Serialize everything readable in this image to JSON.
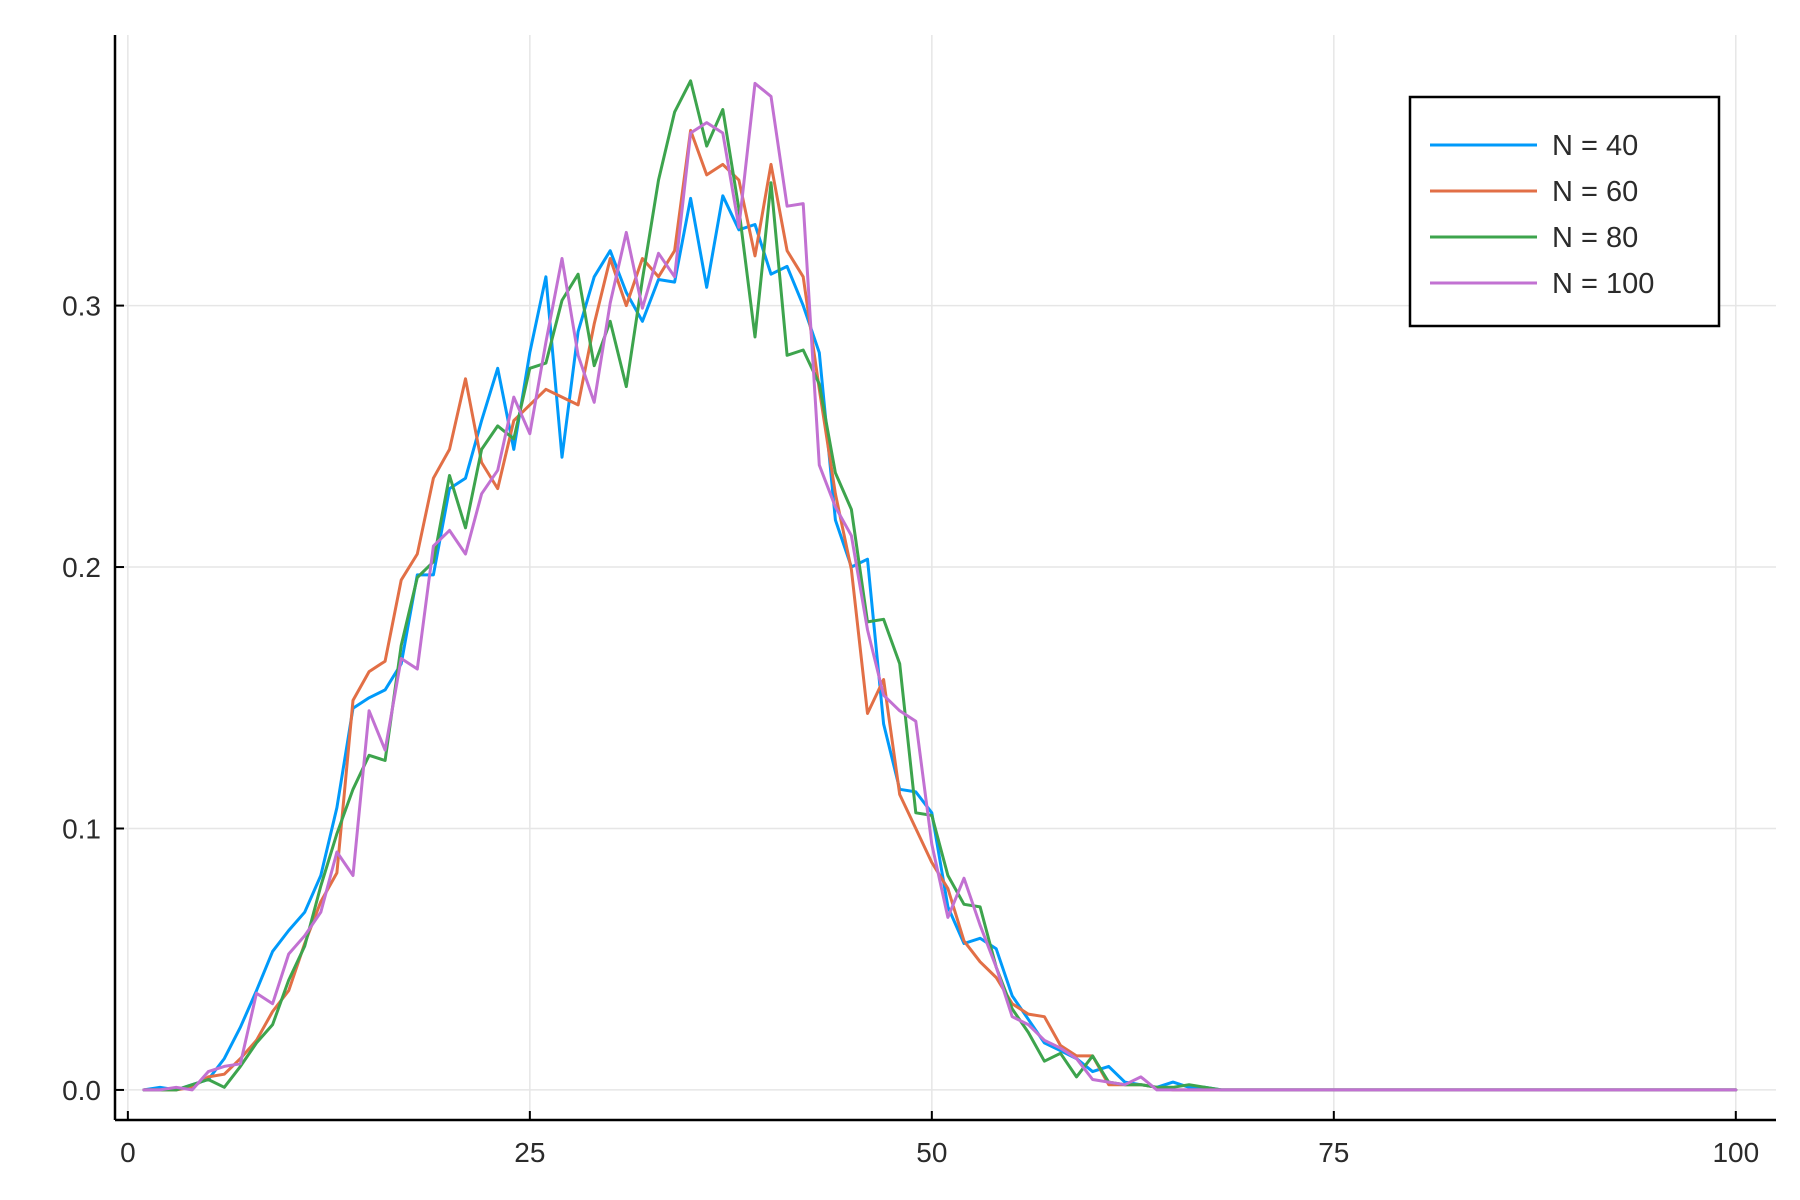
{
  "chart_data": {
    "type": "line",
    "title": "",
    "xlabel": "",
    "ylabel": "",
    "xlim": [
      -0.8,
      102.5
    ],
    "ylim": [
      -0.0115,
      0.4035
    ],
    "x_ticks": [
      0,
      25,
      50,
      75,
      100
    ],
    "x_tick_labels": [
      "0",
      "25",
      "50",
      "75",
      "100"
    ],
    "y_ticks": [
      0.0,
      0.1,
      0.2,
      0.3
    ],
    "y_tick_labels": [
      "0.0",
      "0.1",
      "0.2",
      "0.3"
    ],
    "grid": true,
    "legend_position": "top-right",
    "series": [
      {
        "name": "N = 40",
        "color": "#009AFA",
        "x": [
          1,
          2,
          3,
          4,
          5,
          6,
          7,
          8,
          9,
          10,
          11,
          12,
          13,
          14,
          15,
          16,
          17,
          18,
          19,
          20,
          21,
          22,
          23,
          24,
          25,
          26,
          27,
          28,
          29,
          30,
          31,
          32,
          33,
          34,
          35,
          36,
          37,
          38,
          39,
          40,
          41,
          42,
          43,
          44,
          45,
          46,
          47,
          48,
          49,
          50,
          51,
          52,
          53,
          54,
          55,
          56,
          57,
          58,
          59,
          60,
          61,
          62,
          63,
          64,
          65,
          66,
          67,
          68,
          69,
          70,
          75,
          80,
          85,
          90,
          95,
          100
        ],
        "y": [
          0.0,
          0.001,
          0.0,
          0.002,
          0.004,
          0.012,
          0.024,
          0.038,
          0.053,
          0.061,
          0.068,
          0.082,
          0.108,
          0.146,
          0.15,
          0.153,
          0.163,
          0.197,
          0.197,
          0.23,
          0.234,
          0.256,
          0.276,
          0.245,
          0.282,
          0.311,
          0.242,
          0.29,
          0.311,
          0.321,
          0.305,
          0.294,
          0.31,
          0.309,
          0.341,
          0.307,
          0.342,
          0.329,
          0.331,
          0.312,
          0.315,
          0.3,
          0.282,
          0.218,
          0.2,
          0.203,
          0.14,
          0.115,
          0.114,
          0.106,
          0.07,
          0.056,
          0.058,
          0.054,
          0.036,
          0.027,
          0.018,
          0.015,
          0.012,
          0.007,
          0.009,
          0.003,
          0.002,
          0.001,
          0.003,
          0.001,
          0.001,
          0.0,
          0.0,
          0.0,
          0.0,
          0.0,
          0.0,
          0.0,
          0.0,
          0.0
        ]
      },
      {
        "name": "N = 60",
        "color": "#E26F46",
        "x": [
          1,
          2,
          3,
          4,
          5,
          6,
          7,
          8,
          9,
          10,
          11,
          12,
          13,
          14,
          15,
          16,
          17,
          18,
          19,
          20,
          21,
          22,
          23,
          24,
          25,
          26,
          27,
          28,
          29,
          30,
          31,
          32,
          33,
          34,
          35,
          36,
          37,
          38,
          39,
          40,
          41,
          42,
          43,
          44,
          45,
          46,
          47,
          48,
          49,
          50,
          51,
          52,
          53,
          54,
          55,
          56,
          57,
          58,
          59,
          60,
          61,
          62,
          63,
          64,
          65,
          66,
          67,
          68,
          69,
          70,
          75,
          80,
          85,
          90,
          95,
          100
        ],
        "y": [
          0.0,
          0.0,
          0.0,
          0.001,
          0.005,
          0.006,
          0.012,
          0.019,
          0.03,
          0.038,
          0.056,
          0.072,
          0.083,
          0.149,
          0.16,
          0.164,
          0.195,
          0.205,
          0.234,
          0.245,
          0.272,
          0.24,
          0.23,
          0.256,
          0.262,
          0.268,
          0.265,
          0.262,
          0.293,
          0.318,
          0.3,
          0.318,
          0.311,
          0.321,
          0.367,
          0.35,
          0.354,
          0.348,
          0.319,
          0.354,
          0.321,
          0.311,
          0.268,
          0.228,
          0.199,
          0.144,
          0.157,
          0.113,
          0.1,
          0.087,
          0.077,
          0.057,
          0.049,
          0.043,
          0.033,
          0.029,
          0.028,
          0.017,
          0.013,
          0.013,
          0.002,
          0.002,
          0.002,
          0.001,
          0.0,
          0.0,
          0.0,
          0.0,
          0.0,
          0.0,
          0.0,
          0.0,
          0.0,
          0.0,
          0.0,
          0.0
        ]
      },
      {
        "name": "N = 80",
        "color": "#3DA44D",
        "x": [
          1,
          2,
          3,
          4,
          5,
          6,
          7,
          8,
          9,
          10,
          11,
          12,
          13,
          14,
          15,
          16,
          17,
          18,
          19,
          20,
          21,
          22,
          23,
          24,
          25,
          26,
          27,
          28,
          29,
          30,
          31,
          32,
          33,
          34,
          35,
          36,
          37,
          38,
          39,
          40,
          41,
          42,
          43,
          44,
          45,
          46,
          47,
          48,
          49,
          50,
          51,
          52,
          53,
          54,
          55,
          56,
          57,
          58,
          59,
          60,
          61,
          62,
          63,
          64,
          65,
          66,
          67,
          68,
          69,
          70,
          75,
          80,
          85,
          90,
          95,
          100
        ],
        "y": [
          0.0,
          0.0,
          0.0,
          0.002,
          0.004,
          0.001,
          0.009,
          0.018,
          0.025,
          0.042,
          0.055,
          0.078,
          0.098,
          0.115,
          0.128,
          0.126,
          0.17,
          0.196,
          0.202,
          0.235,
          0.215,
          0.245,
          0.254,
          0.249,
          0.276,
          0.278,
          0.302,
          0.312,
          0.277,
          0.294,
          0.269,
          0.31,
          0.348,
          0.374,
          0.386,
          0.361,
          0.375,
          0.337,
          0.288,
          0.347,
          0.281,
          0.283,
          0.27,
          0.236,
          0.222,
          0.179,
          0.18,
          0.163,
          0.106,
          0.105,
          0.082,
          0.071,
          0.07,
          0.047,
          0.031,
          0.022,
          0.011,
          0.014,
          0.005,
          0.013,
          0.003,
          0.002,
          0.002,
          0.001,
          0.001,
          0.002,
          0.001,
          0.0,
          0.0,
          0.0,
          0.0,
          0.0,
          0.0,
          0.0,
          0.0,
          0.0
        ]
      },
      {
        "name": "N = 100",
        "color": "#C271D2",
        "x": [
          1,
          2,
          3,
          4,
          5,
          6,
          7,
          8,
          9,
          10,
          11,
          12,
          13,
          14,
          15,
          16,
          17,
          18,
          19,
          20,
          21,
          22,
          23,
          24,
          25,
          26,
          27,
          28,
          29,
          30,
          31,
          32,
          33,
          34,
          35,
          36,
          37,
          38,
          39,
          40,
          41,
          42,
          43,
          44,
          45,
          46,
          47,
          48,
          49,
          50,
          51,
          52,
          53,
          54,
          55,
          56,
          57,
          58,
          59,
          60,
          61,
          62,
          63,
          64,
          65,
          66,
          67,
          68,
          69,
          70,
          75,
          80,
          85,
          90,
          95,
          100
        ],
        "y": [
          0.0,
          0.0,
          0.001,
          0.0,
          0.007,
          0.009,
          0.01,
          0.037,
          0.033,
          0.052,
          0.059,
          0.068,
          0.091,
          0.082,
          0.145,
          0.13,
          0.165,
          0.161,
          0.208,
          0.214,
          0.205,
          0.228,
          0.237,
          0.265,
          0.251,
          0.286,
          0.318,
          0.281,
          0.263,
          0.301,
          0.328,
          0.299,
          0.32,
          0.311,
          0.366,
          0.37,
          0.366,
          0.33,
          0.385,
          0.38,
          0.338,
          0.339,
          0.239,
          0.223,
          0.212,
          0.176,
          0.151,
          0.145,
          0.141,
          0.094,
          0.066,
          0.081,
          0.063,
          0.047,
          0.028,
          0.025,
          0.019,
          0.016,
          0.012,
          0.004,
          0.003,
          0.002,
          0.005,
          0.0,
          0.0,
          0.0,
          0.0,
          0.0,
          0.0,
          0.0,
          0.0,
          0.0,
          0.0,
          0.0,
          0.0,
          0.0
        ]
      }
    ]
  }
}
